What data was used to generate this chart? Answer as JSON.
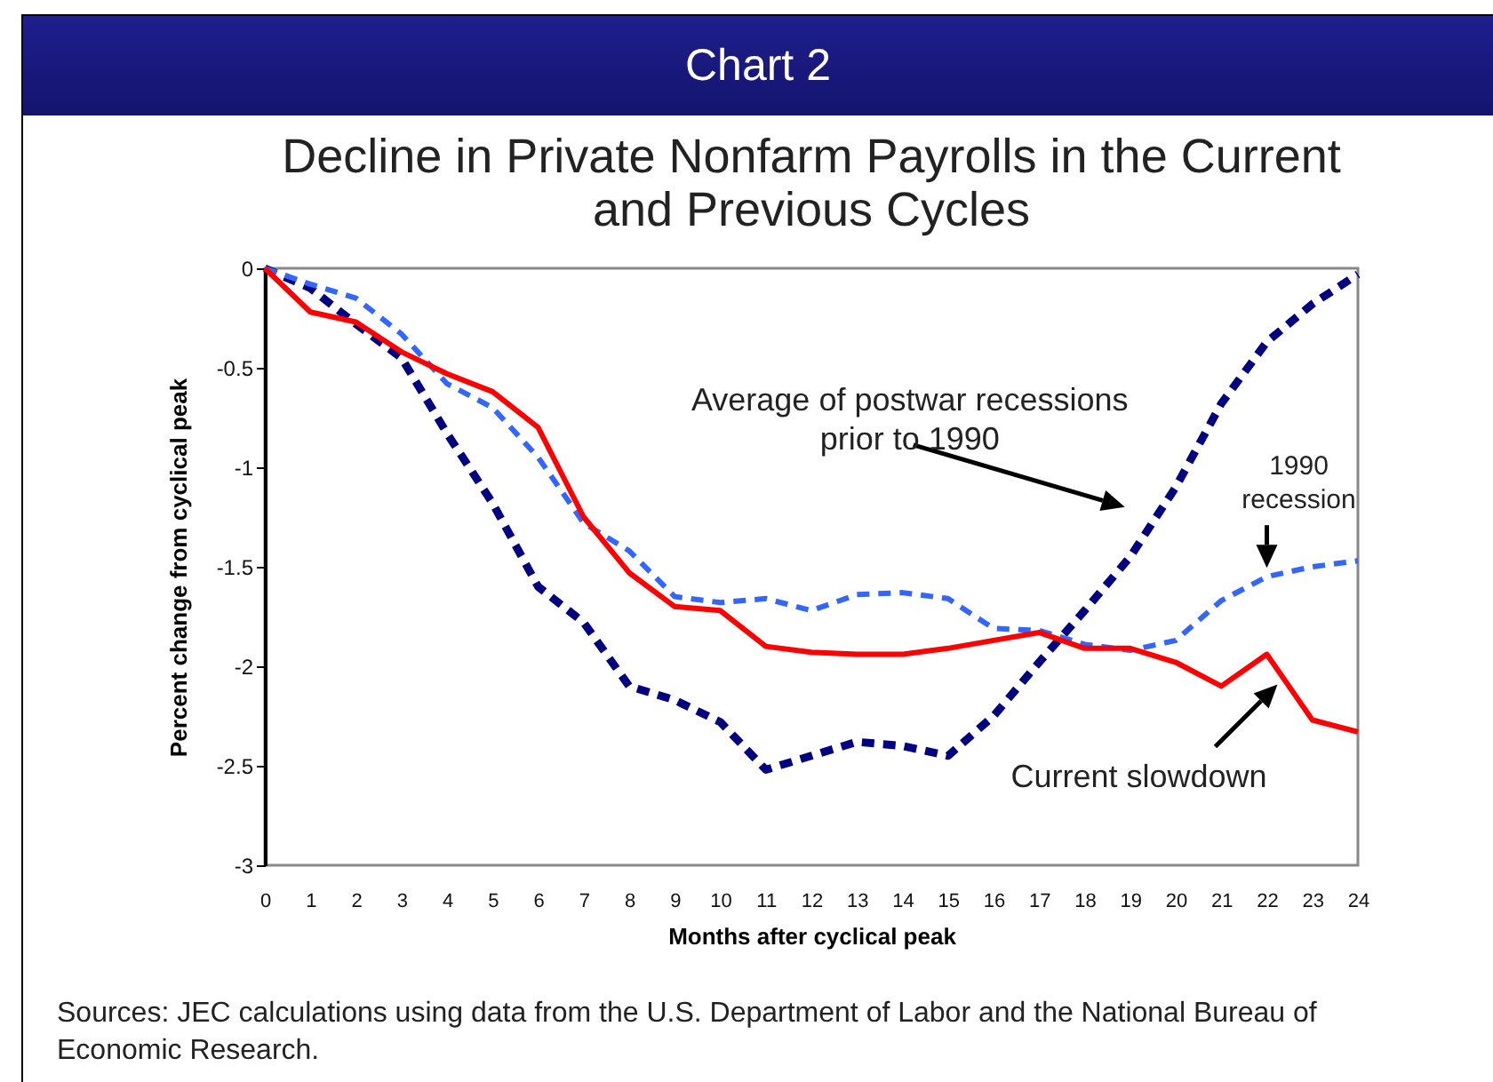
{
  "chart_data": {
    "type": "line",
    "title": "Chart 2",
    "subtitle": "Decline in Private Nonfarm Payrolls in the Current and Previous Cycles",
    "xlabel": "Months after cyclical peak",
    "ylabel": "Percent change from cyclical peak",
    "x": [
      0,
      1,
      2,
      3,
      4,
      5,
      6,
      7,
      8,
      9,
      10,
      11,
      12,
      13,
      14,
      15,
      16,
      17,
      18,
      19,
      20,
      21,
      22,
      23,
      24
    ],
    "series": [
      {
        "name": "Average of postwar recessions prior to 1990",
        "color": "#000080",
        "line_style": "dashed",
        "values": [
          0,
          -0.1,
          -0.28,
          -0.45,
          -0.83,
          -1.18,
          -1.6,
          -1.78,
          -2.1,
          -2.17,
          -2.28,
          -2.52,
          -2.45,
          -2.38,
          -2.4,
          -2.45,
          -2.25,
          -1.98,
          -1.72,
          -1.45,
          -1.1,
          -0.68,
          -0.37,
          -0.18,
          -0.03
        ]
      },
      {
        "name": "1990 recession",
        "color": "#3366ff",
        "line_style": "dashed",
        "values": [
          0,
          -0.08,
          -0.15,
          -0.33,
          -0.58,
          -0.7,
          -0.95,
          -1.28,
          -1.42,
          -1.65,
          -1.68,
          -1.66,
          -1.72,
          -1.64,
          -1.63,
          -1.66,
          -1.81,
          -1.82,
          -1.89,
          -1.92,
          -1.87,
          -1.67,
          -1.55,
          -1.5,
          -1.47
        ]
      },
      {
        "name": "Current slowdown",
        "color": "#ff0000",
        "line_style": "solid",
        "values": [
          0,
          -0.22,
          -0.27,
          -0.42,
          -0.53,
          -0.62,
          -0.8,
          -1.25,
          -1.53,
          -1.7,
          -1.72,
          -1.9,
          -1.93,
          -1.94,
          -1.94,
          -1.91,
          -1.87,
          -1.83,
          -1.91,
          -1.91,
          -1.98,
          -2.1,
          -1.94,
          -2.27,
          -2.33
        ]
      }
    ],
    "xlim": [
      0,
      24
    ],
    "xticks": [
      0,
      1,
      2,
      3,
      4,
      5,
      6,
      7,
      8,
      9,
      10,
      11,
      12,
      13,
      14,
      15,
      16,
      17,
      18,
      19,
      20,
      21,
      22,
      23,
      24
    ],
    "ylim": [
      -3,
      0
    ],
    "yticks": [
      0,
      -0.5,
      -1,
      -1.5,
      -2,
      -2.5,
      -3
    ],
    "grid": false,
    "marker": "none",
    "annotations": [
      "Sources: JEC calculations using data from the U.S. Department of Labor and the National Bureau of Economic Research."
    ]
  }
}
